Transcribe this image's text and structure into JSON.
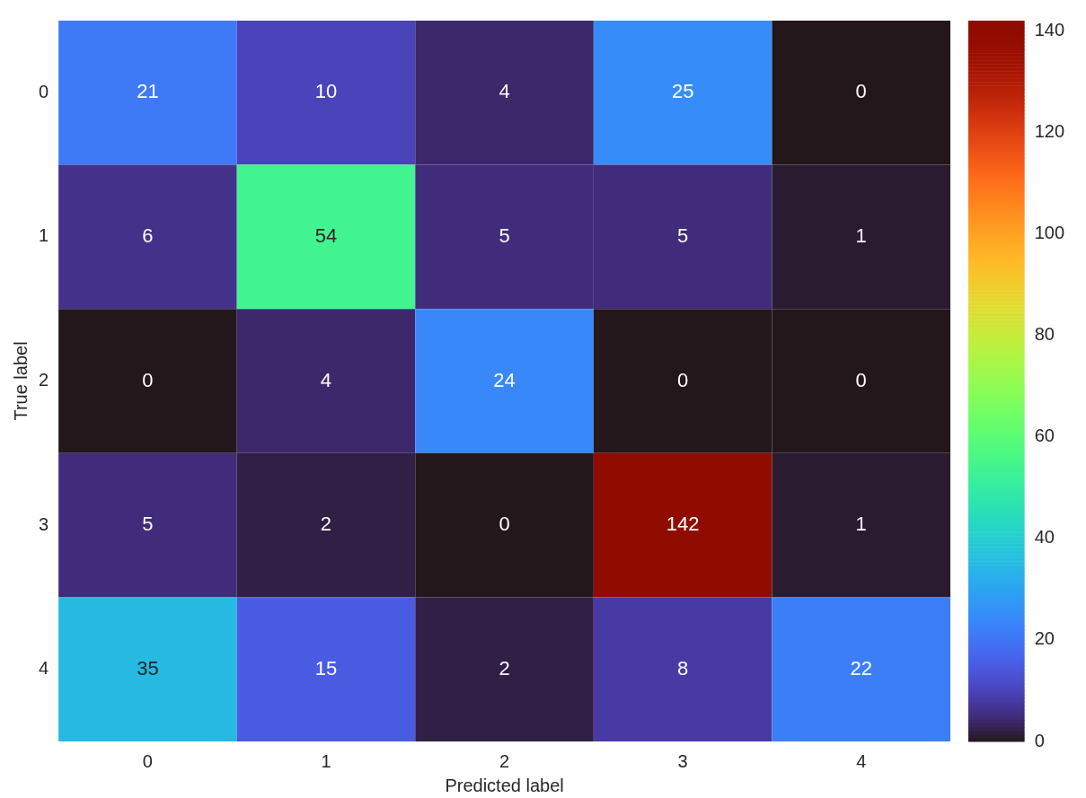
{
  "chart_data": {
    "type": "heatmap",
    "xlabel": "Predicted label",
    "ylabel": "True label",
    "categories": [
      "0",
      "1",
      "2",
      "3",
      "4"
    ],
    "y_categories": [
      "0",
      "1",
      "2",
      "3",
      "4"
    ],
    "cells": [
      [
        21,
        10,
        4,
        25,
        0
      ],
      [
        6,
        54,
        5,
        5,
        1
      ],
      [
        0,
        4,
        24,
        0,
        0
      ],
      [
        5,
        2,
        0,
        142,
        1
      ],
      [
        35,
        15,
        2,
        8,
        22
      ]
    ],
    "clim": [
      0,
      142
    ],
    "cticks": [
      0,
      20,
      40,
      60,
      80,
      100,
      120,
      140
    ],
    "data_labels": true
  }
}
